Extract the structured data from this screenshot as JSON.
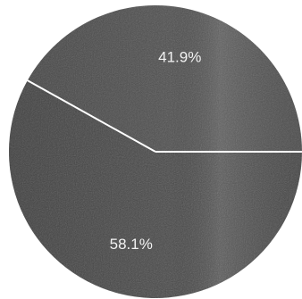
{
  "chart_data": {
    "type": "pie",
    "slices": [
      {
        "label": "41.9%",
        "value": 41.9,
        "color": "#4f4f4f"
      },
      {
        "label": "58.1%",
        "value": 58.1,
        "color": "#4a4a4a"
      }
    ],
    "start_angle_deg": 0,
    "direction": "counterclockwise",
    "separator_color": "#ffffff",
    "background": "#ffffff"
  }
}
